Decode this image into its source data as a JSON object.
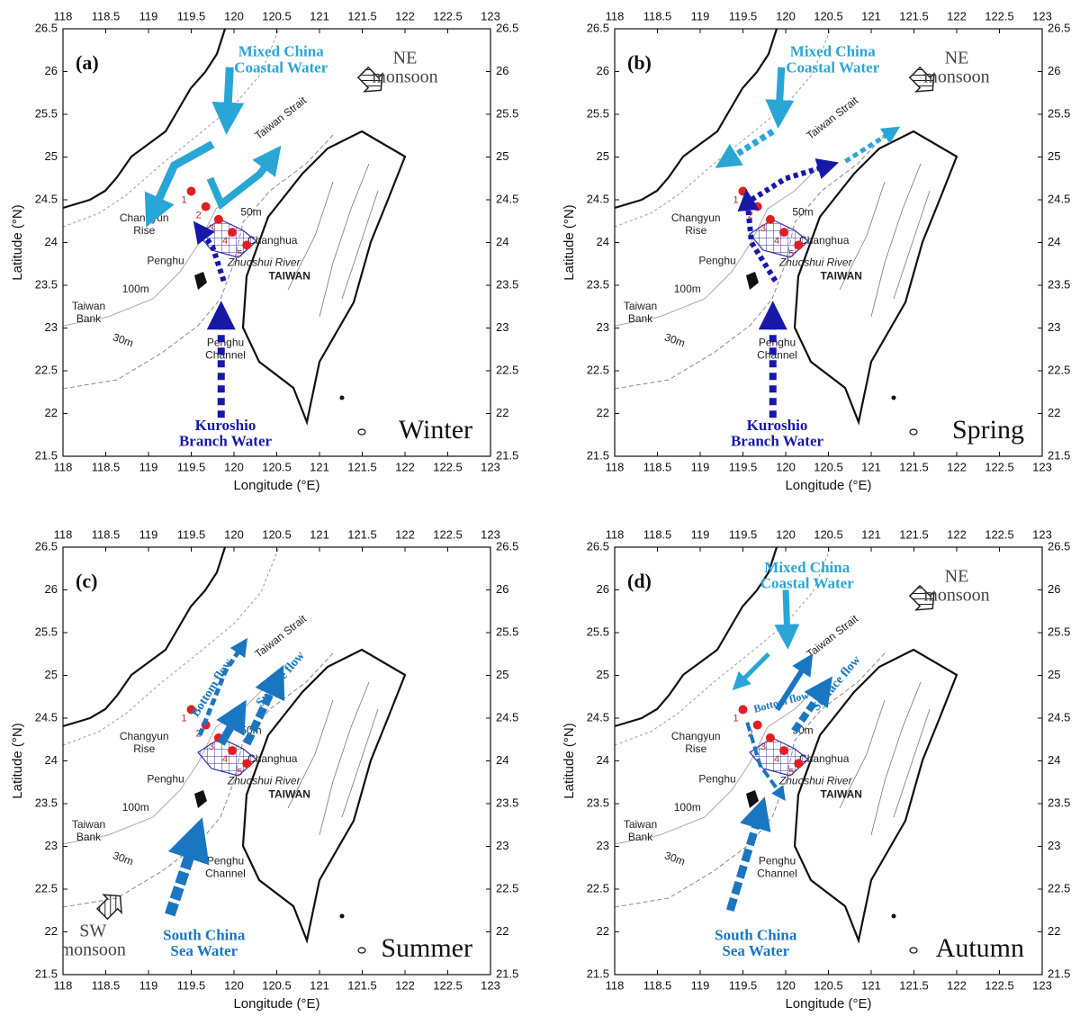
{
  "axes": {
    "lon_ticks": [
      118,
      118.5,
      119,
      119.5,
      120,
      120.5,
      121,
      121.5,
      122,
      122.5,
      123
    ],
    "lat_ticks": [
      21.5,
      22,
      22.5,
      23,
      23.5,
      24,
      24.5,
      25,
      25.5,
      26,
      26.5
    ],
    "x_label": "Longitude (°E)",
    "y_label": "Latitude (°N)"
  },
  "map_labels": {
    "taiwan_strait": "Taiwan Strait",
    "changyun_rise": [
      "Changyun",
      "Rise"
    ],
    "penghu": "Penghu",
    "changhua": "Changhua",
    "taiwan": "TAIWAN",
    "zhuoshui_river": "Zhuoshui River",
    "depth_100m": "100m",
    "depth_50m": "50m",
    "depth_30m": "30m",
    "taiwan_bank": [
      "Taiwan",
      "Bank"
    ],
    "penghu_channel": [
      "Penghu",
      "Channel"
    ]
  },
  "stations": [
    "1",
    "2",
    "3",
    "4",
    "5"
  ],
  "panels": [
    {
      "label": "(a)",
      "season": "Winter",
      "annotations": [
        [
          "NE",
          "monsoon"
        ],
        [
          "Mixed China",
          "Coastal Water"
        ],
        [
          "Kuroshio",
          "Branch Water"
        ]
      ]
    },
    {
      "label": "(b)",
      "season": "Spring",
      "annotations": [
        [
          "NE",
          "monsoon"
        ],
        [
          "Mixed China",
          "Coastal Water"
        ],
        [
          "Kuroshio",
          "Branch Water"
        ]
      ]
    },
    {
      "label": "(c)",
      "season": "Summer",
      "annotations": [
        [
          "Bottom flow"
        ],
        [
          "Surface flow"
        ],
        [
          "SW",
          "monsoon"
        ],
        [
          "South China",
          "Sea Water"
        ]
      ]
    },
    {
      "label": "(d)",
      "season": "Autumn",
      "annotations": [
        [
          "Mixed China",
          "Coastal Water"
        ],
        [
          "NE",
          "monsoon"
        ],
        [
          "Bottom flow"
        ],
        [
          "Surface flow"
        ],
        [
          "South China",
          "Sea Water"
        ]
      ]
    }
  ]
}
